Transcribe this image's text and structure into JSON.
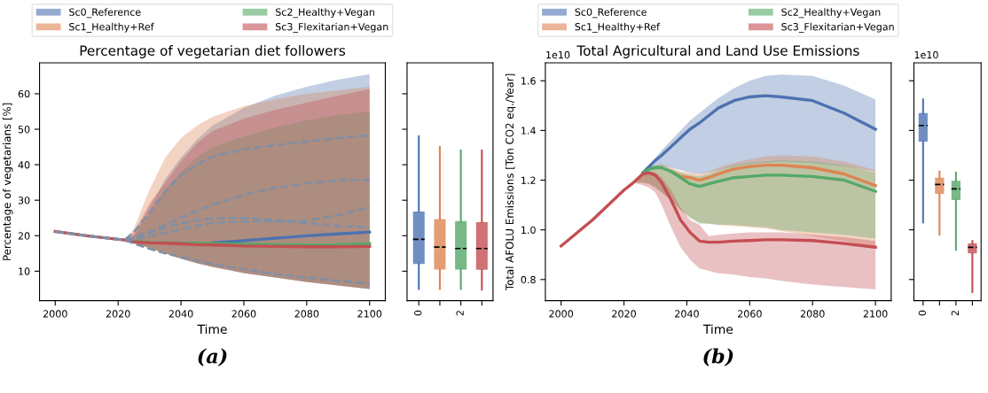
{
  "chart_data": [
    {
      "type": "line",
      "title": "Percentage of vegetarian diet followers",
      "xlabel": "Time",
      "ylabel": "Percentage of vegetarians [%]",
      "legend": "top",
      "annotations": [
        "(a)"
      ],
      "x": [
        2000,
        2010,
        2020,
        2022,
        2025,
        2030,
        2035,
        2040,
        2045,
        2050,
        2060,
        2070,
        2080,
        2090,
        2100
      ],
      "xlim": [
        1995,
        2105
      ],
      "xticks": [
        2000,
        2020,
        2040,
        2060,
        2080,
        2100
      ],
      "ylim": [
        1.7,
        68.7
      ],
      "yticks": [
        10,
        20,
        30,
        40,
        50,
        60
      ],
      "series": [
        {
          "name": "Sc0_Reference",
          "color": "#4c72b0",
          "values": [
            null,
            null,
            null,
            null,
            null,
            null,
            null,
            null,
            null,
            18.0,
            18.6,
            19.3,
            20.0,
            20.5,
            21.0
          ],
          "lower": [
            21.2,
            20.0,
            19.0,
            18.8,
            18.0,
            16.5,
            15.0,
            13.5,
            12.3,
            11.2,
            9.5,
            8.2,
            7.0,
            6.0,
            5.0
          ],
          "upper": [
            21.2,
            20.0,
            19.0,
            18.8,
            20,
            28,
            36,
            42,
            47,
            51,
            56,
            59.5,
            62,
            64,
            65.5
          ]
        },
        {
          "name": "Sc1_Healthy+Ref",
          "color": "#dd8452",
          "values": [
            null,
            null,
            null,
            null,
            null,
            null,
            null,
            null,
            null,
            null,
            null,
            null,
            null,
            null,
            null
          ],
          "lower": [
            21.2,
            20.0,
            19.0,
            18.8,
            18.0,
            16.5,
            15.0,
            13.5,
            12.3,
            11.2,
            9.5,
            8.2,
            7.0,
            6.0,
            5.0
          ],
          "upper": [
            21.2,
            20.0,
            19.0,
            18.8,
            22,
            33,
            42,
            47.5,
            51,
            53.5,
            56.5,
            58.5,
            60,
            61,
            62
          ]
        },
        {
          "name": "Sc2_Healthy+Vegan",
          "color": "#55a868",
          "values": [
            null,
            null,
            null,
            null,
            18.4,
            18.1,
            18.0,
            17.9,
            17.9,
            17.8,
            17.6,
            17.5,
            17.4,
            17.5,
            17.8
          ],
          "lower": [
            21.2,
            20.0,
            19.0,
            18.8,
            18.0,
            16.5,
            15.0,
            13.5,
            12.3,
            11.2,
            9.5,
            8.2,
            7.0,
            6.0,
            5.0
          ],
          "upper": [
            21.2,
            20.0,
            19.0,
            18.8,
            20,
            26,
            33,
            38,
            42,
            45,
            48,
            50.5,
            52.5,
            54,
            55
          ]
        },
        {
          "name": "Sc3_Flexitarian+Vegan",
          "color": "#c44e52",
          "values": [
            21.2,
            20.0,
            19.0,
            18.8,
            18.2,
            18.0,
            17.9,
            17.7,
            17.5,
            17.4,
            17.1,
            17.0,
            16.9,
            16.9,
            17.0
          ],
          "lower": [
            21.2,
            20.0,
            19.0,
            18.8,
            18.0,
            16.5,
            15.0,
            13.5,
            12.3,
            11.2,
            9.5,
            8.2,
            7.0,
            6.0,
            5.0
          ],
          "upper": [
            21.2,
            20.0,
            19.0,
            18.8,
            21,
            29,
            35,
            41,
            46,
            49.5,
            53,
            55.5,
            57.5,
            59.5,
            61.3
          ]
        },
        {
          "color": "#7f8fa6",
          "line_style": "dashed",
          "values": [
            21.2,
            20.0,
            19.0,
            18.8,
            21,
            26.5,
            32.5,
            37,
            40,
            42.3,
            44.3,
            45.5,
            46.5,
            47.5,
            48.3
          ]
        },
        {
          "color": "#7f8fa6",
          "line_style": "dashed",
          "values": [
            21.2,
            20.0,
            19.0,
            18.8,
            19.5,
            21,
            23,
            25,
            27,
            28.7,
            31.5,
            33.5,
            34.8,
            35.5,
            35.8
          ]
        },
        {
          "color": "#7f8fa6",
          "line_style": "dashed",
          "values": [
            21.2,
            20.0,
            19.0,
            18.8,
            19,
            19.8,
            20.8,
            21.8,
            22.8,
            23.6,
            24,
            24,
            24.2,
            25.8,
            28
          ]
        },
        {
          "color": "#7f8fa6",
          "line_style": "dashed",
          "values": [
            21.2,
            20.0,
            19.0,
            18.8,
            19.2,
            20.8,
            22.3,
            23.5,
            24.3,
            24.9,
            25.0,
            24.4,
            23.5,
            22.8,
            22.3
          ]
        },
        {
          "color": "#7f8fa6",
          "line_style": "dashed",
          "values": [
            21.2,
            20.0,
            19.0,
            18.8,
            17.8,
            16.3,
            15.0,
            14.0,
            13.0,
            12.0,
            10.5,
            9.2,
            8.2,
            7.3,
            6.5
          ]
        }
      ]
    },
    {
      "type": "box",
      "categories": [
        "0",
        null,
        "2",
        null
      ],
      "ylim": [
        1.7,
        68.7
      ],
      "yticks": [
        10,
        20,
        30,
        40,
        50,
        60
      ],
      "tick_labels": "x",
      "colors": [
        "#4c72b0",
        "#dd8452",
        "#55a868",
        "#c44e52"
      ],
      "boxes": [
        {
          "low": 5,
          "q1": 12,
          "median": 19,
          "q3": 26.8,
          "high": 48
        },
        {
          "low": 5,
          "q1": 10.5,
          "median": 16.8,
          "q3": 24.7,
          "high": 45
        },
        {
          "low": 5,
          "q1": 10.5,
          "median": 16.4,
          "q3": 24.1,
          "high": 44
        },
        {
          "low": 4.8,
          "q1": 10.4,
          "median": 16.4,
          "q3": 23.8,
          "high": 44
        }
      ]
    },
    {
      "type": "line",
      "title": "Total Agricultural and Land Use Emissions",
      "xlabel": "Time",
      "ylabel": "Total AFOLU Emissions [Ton CO2 eq./Year]",
      "legend": "top",
      "annotations": [
        "1e10",
        "(b)"
      ],
      "x": [
        2000,
        2010,
        2020,
        2023,
        2026,
        2028,
        2030,
        2032,
        2035,
        2038,
        2041,
        2044,
        2047,
        2050,
        2055,
        2060,
        2065,
        2070,
        2080,
        2090,
        2100
      ],
      "xlim": [
        1995,
        2105
      ],
      "xticks": [
        2000,
        2020,
        2040,
        2060,
        2080,
        2100
      ],
      "ylim": [
        0.715,
        1.672
      ],
      "yticks": [
        0.8,
        {
          "value": 1,
          "label": "1.0"
        },
        1.2,
        1.4,
        1.6
      ],
      "series": [
        {
          "name": "Sc0_Reference",
          "color": "#4c72b0",
          "values": [
            null,
            null,
            null,
            null,
            1.23,
            1.255,
            1.28,
            1.3,
            1.335,
            1.37,
            1.405,
            1.43,
            1.46,
            1.49,
            1.52,
            1.535,
            1.54,
            1.535,
            1.52,
            1.47,
            1.405
          ],
          "lower": [
            0.935,
            1.04,
            1.16,
            1.19,
            1.22,
            1.24,
            1.25,
            1.255,
            1.25,
            1.24,
            1.23,
            1.225,
            1.23,
            1.24,
            1.255,
            1.265,
            1.27,
            1.275,
            1.27,
            1.255,
            1.235
          ],
          "upper": [
            0.935,
            1.04,
            1.16,
            1.19,
            1.235,
            1.26,
            1.29,
            1.32,
            1.36,
            1.4,
            1.44,
            1.47,
            1.5,
            1.53,
            1.57,
            1.6,
            1.62,
            1.625,
            1.62,
            1.58,
            1.525
          ]
        },
        {
          "name": "Sc1_Healthy+Ref",
          "color": "#dd8452",
          "values": [
            null,
            null,
            null,
            null,
            null,
            null,
            null,
            null,
            1.235,
            1.215,
            1.21,
            1.2,
            1.21,
            1.225,
            1.245,
            1.255,
            1.26,
            1.26,
            1.25,
            1.225,
            1.178
          ],
          "lower": [
            0.935,
            1.04,
            1.16,
            1.19,
            1.19,
            1.185,
            1.17,
            1.15,
            1.12,
            1.08,
            1.05,
            1.03,
            1.025,
            1.02,
            1.015,
            1.01,
            1.005,
            0.995,
            0.975,
            0.955,
            0.93
          ],
          "upper": [
            0.935,
            1.04,
            1.16,
            1.19,
            1.235,
            1.255,
            1.26,
            1.265,
            1.25,
            1.235,
            1.23,
            1.225,
            1.235,
            1.25,
            1.27,
            1.285,
            1.295,
            1.3,
            1.295,
            1.275,
            1.24
          ]
        },
        {
          "name": "Sc2_Healthy+Vegan",
          "color": "#55a868",
          "values": [
            null,
            null,
            null,
            null,
            1.23,
            1.245,
            1.25,
            1.25,
            1.235,
            1.21,
            1.185,
            1.175,
            1.185,
            1.195,
            1.21,
            1.215,
            1.22,
            1.22,
            1.215,
            1.2,
            1.155
          ],
          "lower": [
            0.935,
            1.04,
            1.16,
            1.19,
            1.19,
            1.185,
            1.17,
            1.15,
            1.12,
            1.08,
            1.05,
            1.025,
            1.025,
            1.02,
            1.02,
            1.015,
            1.01,
            1.0,
            0.99,
            0.98,
            0.965
          ],
          "upper": [
            0.935,
            1.04,
            1.16,
            1.19,
            1.235,
            1.255,
            1.26,
            1.26,
            1.245,
            1.23,
            1.22,
            1.215,
            1.225,
            1.24,
            1.26,
            1.27,
            1.275,
            1.28,
            1.275,
            1.26,
            1.23
          ]
        },
        {
          "name": "Sc3_Flexitarian+Vegan",
          "color": "#c44e52",
          "values": [
            0.935,
            1.04,
            1.16,
            1.19,
            1.225,
            1.23,
            1.22,
            1.19,
            1.12,
            1.04,
            0.99,
            0.955,
            0.95,
            0.95,
            0.955,
            0.957,
            0.96,
            0.96,
            0.957,
            0.945,
            0.93
          ],
          "lower": [
            0.935,
            1.04,
            1.16,
            1.19,
            1.18,
            1.17,
            1.15,
            1.1,
            1.01,
            0.93,
            0.88,
            0.845,
            0.835,
            0.825,
            0.82,
            0.81,
            0.805,
            0.795,
            0.78,
            0.77,
            0.76
          ],
          "upper": [
            0.935,
            1.04,
            1.16,
            1.19,
            1.23,
            1.235,
            1.23,
            1.21,
            1.16,
            1.09,
            1.04,
            1.02,
            0.975,
            0.98,
            0.985,
            0.99,
            0.99,
            0.99,
            0.98,
            0.97,
            0.955
          ]
        }
      ]
    },
    {
      "type": "box",
      "categories": [
        "0",
        null,
        "2",
        null
      ],
      "ylim": [
        0.715,
        1.672
      ],
      "yticks": [
        0.8,
        1.0,
        1.2,
        1.4,
        1.6
      ],
      "tick_labels": "x",
      "annotations": [
        "1e10"
      ],
      "colors": [
        "#4c72b0",
        "#dd8452",
        "#55a868",
        "#c44e52"
      ],
      "boxes": [
        {
          "low": 1.03,
          "q1": 1.355,
          "median": 1.42,
          "q3": 1.47,
          "high": 1.525
        },
        {
          "low": 0.98,
          "q1": 1.145,
          "median": 1.183,
          "q3": 1.21,
          "high": 1.235
        },
        {
          "low": 0.92,
          "q1": 1.12,
          "median": 1.165,
          "q3": 1.197,
          "high": 1.23
        },
        {
          "low": 0.75,
          "q1": 0.905,
          "median": 0.93,
          "q3": 0.945,
          "high": 0.955
        }
      ]
    }
  ]
}
